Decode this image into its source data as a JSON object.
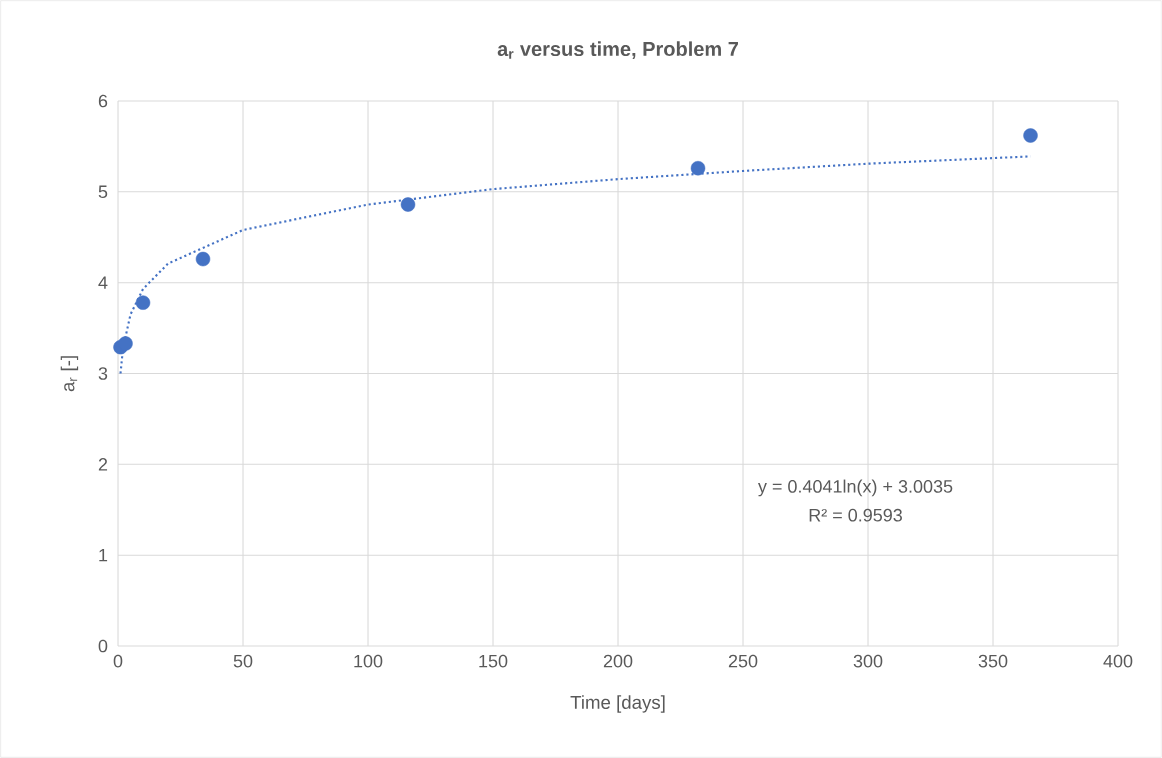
{
  "chart_data": {
    "type": "scatter",
    "title": "a$_{r}$ versus time, Problem 7",
    "xlabel": "Time [days]",
    "ylabel": "a$_{r}$ [-]",
    "xlim": [
      0,
      400
    ],
    "ylim": [
      0,
      6
    ],
    "xticks": [
      0,
      50,
      100,
      150,
      200,
      250,
      300,
      350,
      400
    ],
    "yticks": [
      0,
      1,
      2,
      3,
      4,
      5,
      6
    ],
    "grid": true,
    "series": [
      {
        "color": "#4472c4",
        "marker": "circle",
        "x": [
          1,
          3,
          10,
          34,
          116,
          232,
          365
        ],
        "values": [
          3.29,
          3.33,
          3.78,
          4.26,
          4.86,
          5.26,
          5.62
        ]
      },
      {
        "type": "line",
        "color": "#4472c4",
        "marker": "none",
        "line_style": "dotted",
        "x": [
          1,
          2,
          5,
          10,
          20,
          50,
          100,
          150,
          200,
          250,
          300,
          365
        ],
        "values": [
          3.0,
          3.28,
          3.65,
          3.93,
          4.21,
          4.58,
          4.86,
          5.03,
          5.14,
          5.23,
          5.31,
          5.39
        ]
      }
    ],
    "annotations": [
      {
        "text": "y = 0.4041ln(x) + 3.0035"
      },
      {
        "text": "R² = 0.9593"
      }
    ]
  }
}
